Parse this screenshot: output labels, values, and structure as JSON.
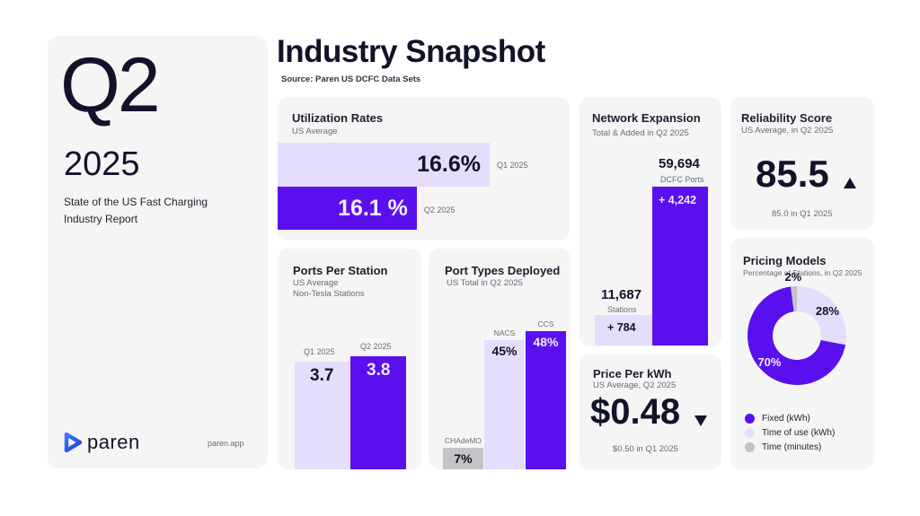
{
  "header": {
    "quarter": "Q2",
    "year": "2025",
    "report_title": "State of the US Fast Charging Industry Report",
    "page_title": "Industry Snapshot",
    "source": "Source: Paren US DCFC Data Sets",
    "brand": "paren",
    "site": "paren.app"
  },
  "colors": {
    "accent": "#5a10ee",
    "light": "#e4ddfb",
    "grey": "#c3c3c8",
    "card": "#f5f5f6",
    "text": "#12122a"
  },
  "chart_data": [
    {
      "type": "bar",
      "orientation": "horizontal",
      "title": "Utilization Rates",
      "subtitle": "US Average",
      "categories": [
        "Q1 2025",
        "Q2 2025"
      ],
      "values": [
        16.6,
        16.1
      ],
      "labels": [
        "16.6%",
        "16.1 %"
      ],
      "unit": "%"
    },
    {
      "type": "bar",
      "title": "Network Expansion",
      "subtitle": "Total & Added in Q2 2025",
      "categories": [
        "Stations",
        "DCFC Ports"
      ],
      "totals": [
        11687,
        59694
      ],
      "total_labels": [
        "11,687",
        "59,694"
      ],
      "added": [
        784,
        4242
      ],
      "added_labels": [
        "+ 784",
        "+ 4,242"
      ]
    },
    {
      "type": "table",
      "title": "Reliability Score",
      "subtitle": "US Average, in Q2 2025",
      "value": "85.5",
      "trend": "up",
      "comparison": "85.0 in Q1 2025"
    },
    {
      "type": "bar",
      "title": "Ports Per Station",
      "subtitle_lines": [
        "US Average",
        "Non-Tesla Stations"
      ],
      "categories": [
        "Q1 2025",
        "Q2 2025"
      ],
      "values": [
        3.7,
        3.8
      ],
      "labels": [
        "3.7",
        "3.8"
      ]
    },
    {
      "type": "bar",
      "title": "Port Types Deployed",
      "subtitle": "US Total in Q2 2025",
      "categories": [
        "CHAdeMO",
        "NACS",
        "CCS"
      ],
      "values": [
        7,
        45,
        48
      ],
      "labels": [
        "7%",
        "45%",
        "48%"
      ],
      "unit": "%"
    },
    {
      "type": "table",
      "title": "Price Per kWh",
      "subtitle": "US Average, Q2 2025",
      "value": "$0.48",
      "trend": "down",
      "comparison": "$0.50 in Q1 2025"
    },
    {
      "type": "pie",
      "title": "Pricing Models",
      "subtitle": "Percentage of Stations, in Q2 2025",
      "categories": [
        "Fixed (kWh)",
        "Time of use (kWh)",
        "Time (minutes)"
      ],
      "values": [
        70,
        28,
        2
      ],
      "labels": [
        "70%",
        "28%",
        "2%"
      ],
      "legend": "bottom"
    }
  ]
}
